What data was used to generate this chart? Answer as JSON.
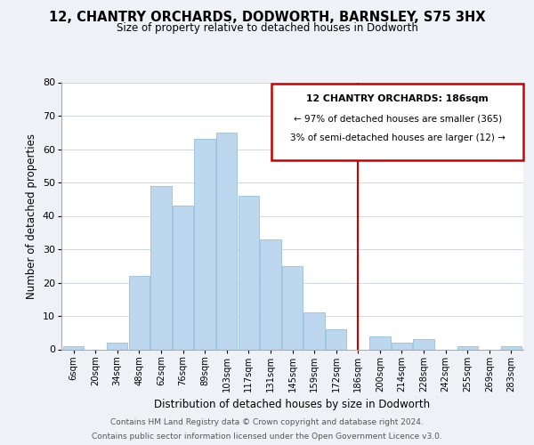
{
  "title": "12, CHANTRY ORCHARDS, DODWORTH, BARNSLEY, S75 3HX",
  "subtitle": "Size of property relative to detached houses in Dodworth",
  "xlabel": "Distribution of detached houses by size in Dodworth",
  "ylabel": "Number of detached properties",
  "bar_labels": [
    "6sqm",
    "20sqm",
    "34sqm",
    "48sqm",
    "62sqm",
    "76sqm",
    "89sqm",
    "103sqm",
    "117sqm",
    "131sqm",
    "145sqm",
    "159sqm",
    "172sqm",
    "186sqm",
    "200sqm",
    "214sqm",
    "228sqm",
    "242sqm",
    "255sqm",
    "269sqm",
    "283sqm"
  ],
  "bar_values": [
    1,
    0,
    2,
    22,
    49,
    43,
    63,
    65,
    46,
    33,
    25,
    11,
    6,
    0,
    4,
    2,
    3,
    0,
    1,
    0,
    1
  ],
  "bar_color": "#bdd7ee",
  "bar_edge_color": "#9ec6e0",
  "marker_index": 13,
  "marker_color": "#cc0000",
  "ylim": [
    0,
    80
  ],
  "yticks": [
    0,
    10,
    20,
    30,
    40,
    50,
    60,
    70,
    80
  ],
  "annotation_title": "12 CHANTRY ORCHARDS: 186sqm",
  "annotation_line1": "← 97% of detached houses are smaller (365)",
  "annotation_line2": "3% of semi-detached houses are larger (12) →",
  "background_color": "#eef2f7",
  "plot_bg_color": "#ffffff",
  "footer_line1": "Contains HM Land Registry data © Crown copyright and database right 2024.",
  "footer_line2": "Contains public sector information licensed under the Open Government Licence v3.0."
}
